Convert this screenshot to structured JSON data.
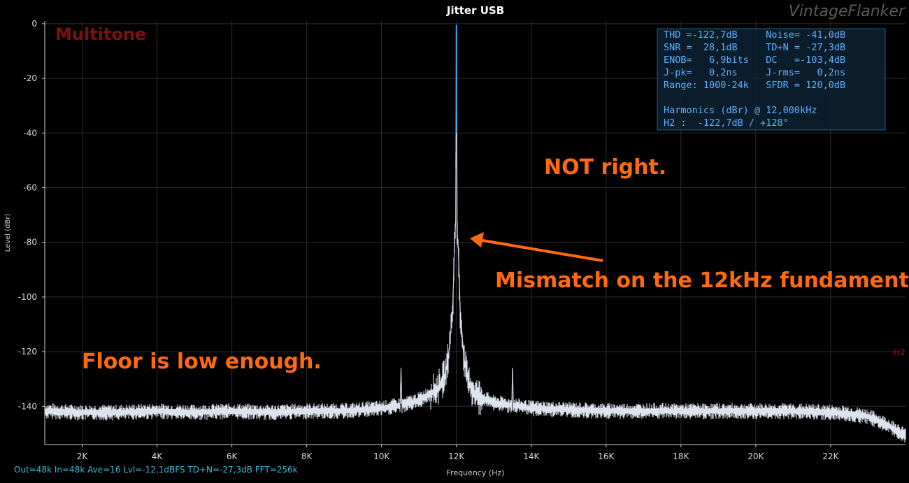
{
  "chart_data": {
    "type": "line",
    "title": "Jitter USB",
    "xlabel": "Frequency (Hz)",
    "ylabel": "Level (dBr)",
    "xlim": [
      1000,
      24000
    ],
    "ylim": [
      -154,
      1
    ],
    "grid": true,
    "x_ticks": [
      2000,
      4000,
      6000,
      8000,
      10000,
      12000,
      14000,
      16000,
      18000,
      20000,
      22000
    ],
    "x_tick_labels": [
      "2K",
      "4K",
      "6K",
      "8K",
      "10K",
      "12K",
      "14K",
      "16K",
      "18K",
      "20K",
      "22K"
    ],
    "y_ticks": [
      0,
      -20,
      -40,
      -60,
      -80,
      -100,
      -120,
      -140
    ],
    "y_tick_labels": [
      "0",
      "-20",
      "-40",
      "-60",
      "-80",
      "-100",
      "-120",
      "-140"
    ],
    "colors": {
      "background": "#000000",
      "trace": "#dde3ee",
      "fundamental": "#3fa9ff",
      "grid": "#2e2e2e",
      "annotation": "#ff6a10",
      "stats": "#5fb0ff",
      "watermark": "#7d1010"
    },
    "series": [
      {
        "x": [
          1000,
          2000,
          3000,
          4000,
          5000,
          6000,
          7000,
          8000,
          9000,
          9500,
          10000,
          10500,
          10520,
          10540,
          11000,
          11500,
          11700,
          11800,
          11900,
          11950,
          11980,
          12000,
          12020,
          12050,
          12100,
          12200,
          12300,
          12500,
          13000,
          13480,
          13500,
          13520,
          14000,
          15000,
          16000,
          17000,
          18000,
          19000,
          20000,
          21000,
          22000,
          22500,
          23000,
          23500,
          24000
        ],
        "y": [
          -141,
          -141.5,
          -141.5,
          -141,
          -141.5,
          -141,
          -141.5,
          -141,
          -141,
          -140.5,
          -140,
          -139,
          -126,
          -139,
          -137,
          -133,
          -128,
          -120,
          -105,
          -80,
          -72,
          -0.5,
          -76,
          -82,
          -105,
          -122,
          -130,
          -135,
          -138,
          -139,
          -126,
          -139,
          -140,
          -140.5,
          -141,
          -141,
          -141,
          -141,
          -141,
          -141,
          -141.5,
          -142,
          -143,
          -146,
          -150
        ]
      }
    ],
    "annotations": [
      "NOT right.",
      "Mismatch on the 12kHz fundamental.",
      "Floor is low enough."
    ],
    "marker_label": "H2",
    "overlay_label": "Multitone",
    "watermark": "VintageFlanker",
    "footer": "Out=48k In=48k Ave=16 Lvl=-12,1dBFS TD+N=-27,3dB FFT=256k",
    "stats": [
      "THD =-122,7dB     Noise= -41,0dB",
      "SNR =  28,1dB     TD+N = -27,3dB",
      "ENOB=   6,9bits   DC   =-103,4dB",
      "J-pk=   0,2ns     J-rms=   0,2ns",
      "Range: 1000-24k   SFDR = 120,0dB",
      "",
      "Harmonics (dBr) @ 12,000kHz",
      "H2 :  -122,7dB / +128°"
    ]
  }
}
